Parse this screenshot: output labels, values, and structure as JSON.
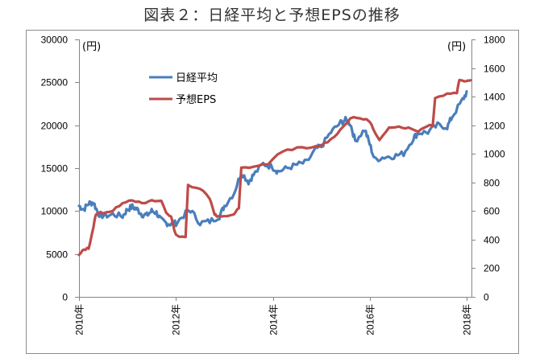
{
  "title": "図表２：日経平均と予想EPSの推移",
  "colors": {
    "nikkei": "#4a7ebb",
    "eps": "#be4b48",
    "axis": "#868686"
  },
  "chart_data": {
    "type": "line",
    "title": "図表２：日経平均と予想EPSの推移",
    "xlabel": "",
    "x_ticks": [
      "2010年",
      "2012年",
      "2014年",
      "2016年",
      "2018年"
    ],
    "left_axis": {
      "unit": "(円)",
      "ylim": [
        0,
        30000
      ],
      "ticks": [
        0,
        5000,
        10000,
        15000,
        20000,
        25000,
        30000
      ]
    },
    "right_axis": {
      "unit": "(円)",
      "ylim": [
        0,
        1800
      ],
      "ticks": [
        0,
        200,
        400,
        600,
        800,
        1000,
        1200,
        1400,
        1600,
        1800
      ]
    },
    "legend": {
      "position": "upper-left",
      "entries": [
        "日経平均",
        "予想EPS"
      ]
    },
    "grid": false,
    "series": [
      {
        "name": "日経平均",
        "axis": "left",
        "x": [
          2010.0,
          2010.1,
          2010.2,
          2010.3,
          2010.4,
          2010.5,
          2010.7,
          2010.9,
          2011.0,
          2011.1,
          2011.2,
          2011.3,
          2011.4,
          2011.5,
          2011.6,
          2011.7,
          2011.8,
          2011.9,
          2012.0,
          2012.2,
          2012.3,
          2012.5,
          2012.7,
          2012.9,
          2013.0,
          2013.2,
          2013.35,
          2013.5,
          2013.6,
          2013.8,
          2014.0,
          2014.1,
          2014.3,
          2014.5,
          2014.7,
          2014.9,
          2015.0,
          2015.2,
          2015.4,
          2015.5,
          2015.6,
          2015.7,
          2015.9,
          2016.0,
          2016.1,
          2016.3,
          2016.5,
          2016.7,
          2016.9,
          2017.0,
          2017.2,
          2017.4,
          2017.6,
          2017.7,
          2017.9,
          2018.0
        ],
        "values": [
          10600,
          10200,
          10900,
          11000,
          9700,
          9400,
          9600,
          9400,
          10200,
          10500,
          10200,
          9600,
          9500,
          10000,
          9800,
          8900,
          8600,
          8500,
          8600,
          9700,
          10100,
          8600,
          8800,
          9400,
          10600,
          12100,
          14500,
          13400,
          14200,
          15500,
          15100,
          14600,
          15000,
          15400,
          15700,
          17300,
          17500,
          19200,
          20300,
          20600,
          20200,
          18200,
          19500,
          17800,
          16000,
          16300,
          16400,
          16700,
          18500,
          19100,
          19200,
          20000,
          19800,
          21000,
          22800,
          23800
        ]
      },
      {
        "name": "予想EPS",
        "axis": "right",
        "x": [
          2010.0,
          2010.1,
          2010.2,
          2010.3,
          2010.35,
          2010.5,
          2010.7,
          2010.9,
          2011.1,
          2011.3,
          2011.5,
          2011.7,
          2011.8,
          2011.9,
          2012.0,
          2012.2,
          2012.25,
          2012.5,
          2012.7,
          2012.8,
          2012.85,
          2013.0,
          2013.2,
          2013.3,
          2013.35,
          2013.6,
          2013.9,
          2014.2,
          2014.5,
          2014.8,
          2015.0,
          2015.2,
          2015.4,
          2015.6,
          2015.8,
          2016.0,
          2016.1,
          2016.2,
          2016.4,
          2016.6,
          2016.8,
          2017.0,
          2017.2,
          2017.3,
          2017.35,
          2017.6,
          2017.8,
          2017.85,
          2018.0,
          2018.08
        ],
        "values": [
          290,
          330,
          340,
          490,
          580,
          590,
          600,
          660,
          680,
          650,
          670,
          670,
          590,
          560,
          430,
          420,
          780,
          760,
          690,
          580,
          560,
          560,
          580,
          620,
          900,
          910,
          930,
          1020,
          1040,
          1040,
          1060,
          1100,
          1170,
          1250,
          1250,
          1230,
          1150,
          1090,
          1190,
          1190,
          1180,
          1160,
          1200,
          1200,
          1390,
          1420,
          1430,
          1520,
          1510,
          1520
        ]
      }
    ]
  },
  "legend": {
    "nikkei_label": "日経平均",
    "eps_label": "予想EPS"
  },
  "axes": {
    "left_unit": "(円)",
    "right_unit": "(円)",
    "left_ticks": [
      "0",
      "5000",
      "10000",
      "15000",
      "20000",
      "25000",
      "30000"
    ],
    "right_ticks": [
      "0",
      "200",
      "400",
      "600",
      "800",
      "1000",
      "1200",
      "1400",
      "1600",
      "1800"
    ],
    "x_ticks": [
      "2010年",
      "2012年",
      "2014年",
      "2016年",
      "2018年"
    ]
  }
}
